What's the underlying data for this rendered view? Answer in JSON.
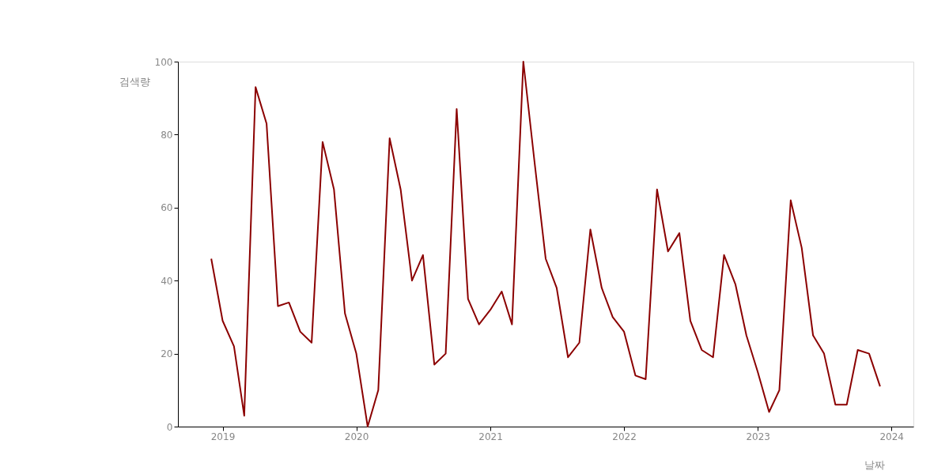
{
  "chart_data": {
    "type": "line",
    "xlabel": "날짜",
    "ylabel": "검색량",
    "x": [
      "2018-12",
      "2019-01",
      "2019-02",
      "2019-03",
      "2019-04",
      "2019-05",
      "2019-06",
      "2019-07",
      "2019-08",
      "2019-09",
      "2019-10",
      "2019-11",
      "2019-12",
      "2020-01",
      "2020-02",
      "2020-03",
      "2020-04",
      "2020-05",
      "2020-06",
      "2020-07",
      "2020-08",
      "2020-09",
      "2020-10",
      "2020-11",
      "2020-12",
      "2021-01",
      "2021-02",
      "2021-03",
      "2021-04",
      "2021-05",
      "2021-06",
      "2021-07",
      "2021-08",
      "2021-09",
      "2021-10",
      "2021-11",
      "2021-12",
      "2022-01",
      "2022-02",
      "2022-03",
      "2022-04",
      "2022-05",
      "2022-06",
      "2022-07",
      "2022-08",
      "2022-09",
      "2022-10",
      "2022-11",
      "2022-12",
      "2023-01",
      "2023-02",
      "2023-03",
      "2023-04",
      "2023-05",
      "2023-06",
      "2023-07",
      "2023-08",
      "2023-09",
      "2023-10",
      "2023-11",
      "2023-12"
    ],
    "series": [
      {
        "color": "#8b0000",
        "values": [
          46,
          29,
          22,
          3,
          93,
          83,
          33,
          34,
          26,
          23,
          78,
          65,
          31,
          20,
          0,
          10,
          79,
          65,
          40,
          47,
          17,
          20,
          87,
          35,
          28,
          32,
          37,
          28,
          100,
          73,
          46,
          38,
          19,
          23,
          54,
          38,
          30,
          26,
          14,
          13,
          65,
          48,
          53,
          29,
          21,
          19,
          47,
          39,
          25,
          15,
          4,
          10,
          62,
          49,
          25,
          20,
          6,
          6,
          21,
          20,
          11
        ]
      }
    ],
    "xlim": [
      "2018-09",
      "2024-03"
    ],
    "xticks": [
      "2019",
      "2020",
      "2021",
      "2022",
      "2023",
      "2024"
    ],
    "ylim": [
      0,
      100
    ],
    "yticks": [
      0,
      20,
      40,
      60,
      80,
      100
    ],
    "grid": false,
    "legend": false,
    "marker": "none",
    "line_style": "solid"
  }
}
